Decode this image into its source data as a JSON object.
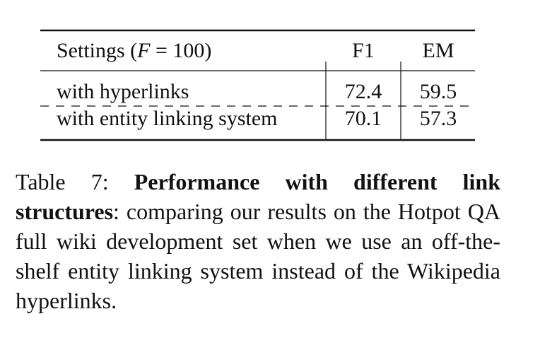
{
  "table": {
    "header": {
      "settings": [
        "Settings (",
        "F",
        " = 100)"
      ],
      "columns": [
        "F1",
        "EM"
      ]
    },
    "rows": [
      [
        "with hyperlinks",
        72.4,
        59.5
      ],
      [
        "with entity linking system",
        70.1,
        57.3
      ]
    ]
  },
  "caption": {
    "label": "Table 7:",
    "title": "Performance with different link structures",
    "text": ": comparing our results on the Hotpot QA full wiki development set when we use an off-the-shelf entity linking system instead of the Wikipedia hyperlinks."
  }
}
